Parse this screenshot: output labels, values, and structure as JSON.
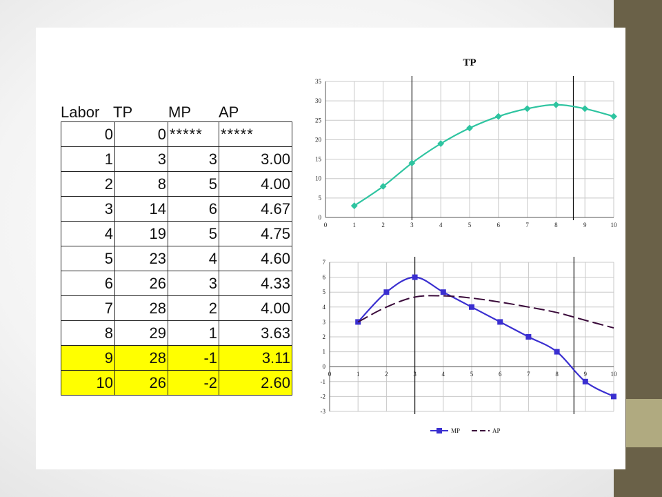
{
  "table": {
    "headers": {
      "labor": "Labor",
      "tp": "TP",
      "mp": "MP",
      "ap": "AP"
    },
    "rows": [
      {
        "labor": "0",
        "tp": "0",
        "mp": "*****",
        "ap": "*****",
        "highlight": false
      },
      {
        "labor": "1",
        "tp": "3",
        "mp": "3",
        "ap": "3.00",
        "highlight": false
      },
      {
        "labor": "2",
        "tp": "8",
        "mp": "5",
        "ap": "4.00",
        "highlight": false
      },
      {
        "labor": "3",
        "tp": "14",
        "mp": "6",
        "ap": "4.67",
        "highlight": false
      },
      {
        "labor": "4",
        "tp": "19",
        "mp": "5",
        "ap": "4.75",
        "highlight": false
      },
      {
        "labor": "5",
        "tp": "23",
        "mp": "4",
        "ap": "4.60",
        "highlight": false
      },
      {
        "labor": "6",
        "tp": "26",
        "mp": "3",
        "ap": "4.33",
        "highlight": false
      },
      {
        "labor": "7",
        "tp": "28",
        "mp": "2",
        "ap": "4.00",
        "highlight": false
      },
      {
        "labor": "8",
        "tp": "29",
        "mp": "1",
        "ap": "3.63",
        "highlight": false
      },
      {
        "labor": "9",
        "tp": "28",
        "mp": "-1",
        "ap": "3.11",
        "highlight": true
      },
      {
        "labor": "10",
        "tp": "26",
        "mp": "-2",
        "ap": "2.60",
        "highlight": true
      }
    ],
    "highlight_color": "#ffff00"
  },
  "chart_data": [
    {
      "type": "line",
      "title": "TP",
      "x": [
        1,
        2,
        3,
        4,
        5,
        6,
        7,
        8,
        9,
        10
      ],
      "series": [
        {
          "name": "",
          "values": [
            3,
            8,
            14,
            19,
            23,
            26,
            28,
            29,
            28,
            26
          ],
          "color": "#2ec4a0"
        }
      ],
      "xlim": [
        0,
        10
      ],
      "ylim": [
        0,
        35
      ],
      "xticks": [
        "0",
        "1",
        "2",
        "3",
        "4",
        "5",
        "6",
        "7",
        "8",
        "9",
        "10"
      ],
      "yticks": [
        "0",
        "5",
        "10",
        "15",
        "20",
        "25",
        "30",
        "35"
      ],
      "grid": true,
      "reference_lines_x": [
        3,
        8.6
      ]
    },
    {
      "type": "line",
      "title": "",
      "x": [
        1,
        2,
        3,
        4,
        5,
        6,
        7,
        8,
        9,
        10
      ],
      "series": [
        {
          "name": "MP",
          "values": [
            3,
            5,
            6,
            5,
            4,
            3,
            2,
            1,
            -1,
            -2
          ],
          "color": "#3a2fd0",
          "style": "solid-square-markers"
        },
        {
          "name": "AP",
          "values": [
            3.0,
            4.0,
            4.67,
            4.75,
            4.6,
            4.33,
            4.0,
            3.63,
            3.11,
            2.6
          ],
          "color": "#3a0a3a",
          "style": "dashed"
        }
      ],
      "xlim": [
        0,
        10
      ],
      "ylim": [
        -3,
        7
      ],
      "xticks": [
        "0",
        "1",
        "2",
        "3",
        "4",
        "5",
        "6",
        "7",
        "8",
        "9",
        "10"
      ],
      "yticks": [
        "-3",
        "-2",
        "-1",
        "0",
        "1",
        "2",
        "3",
        "4",
        "5",
        "6",
        "7"
      ],
      "grid": true,
      "legend": "bottom-center",
      "reference_lines_x": [
        3,
        8.6
      ]
    }
  ]
}
